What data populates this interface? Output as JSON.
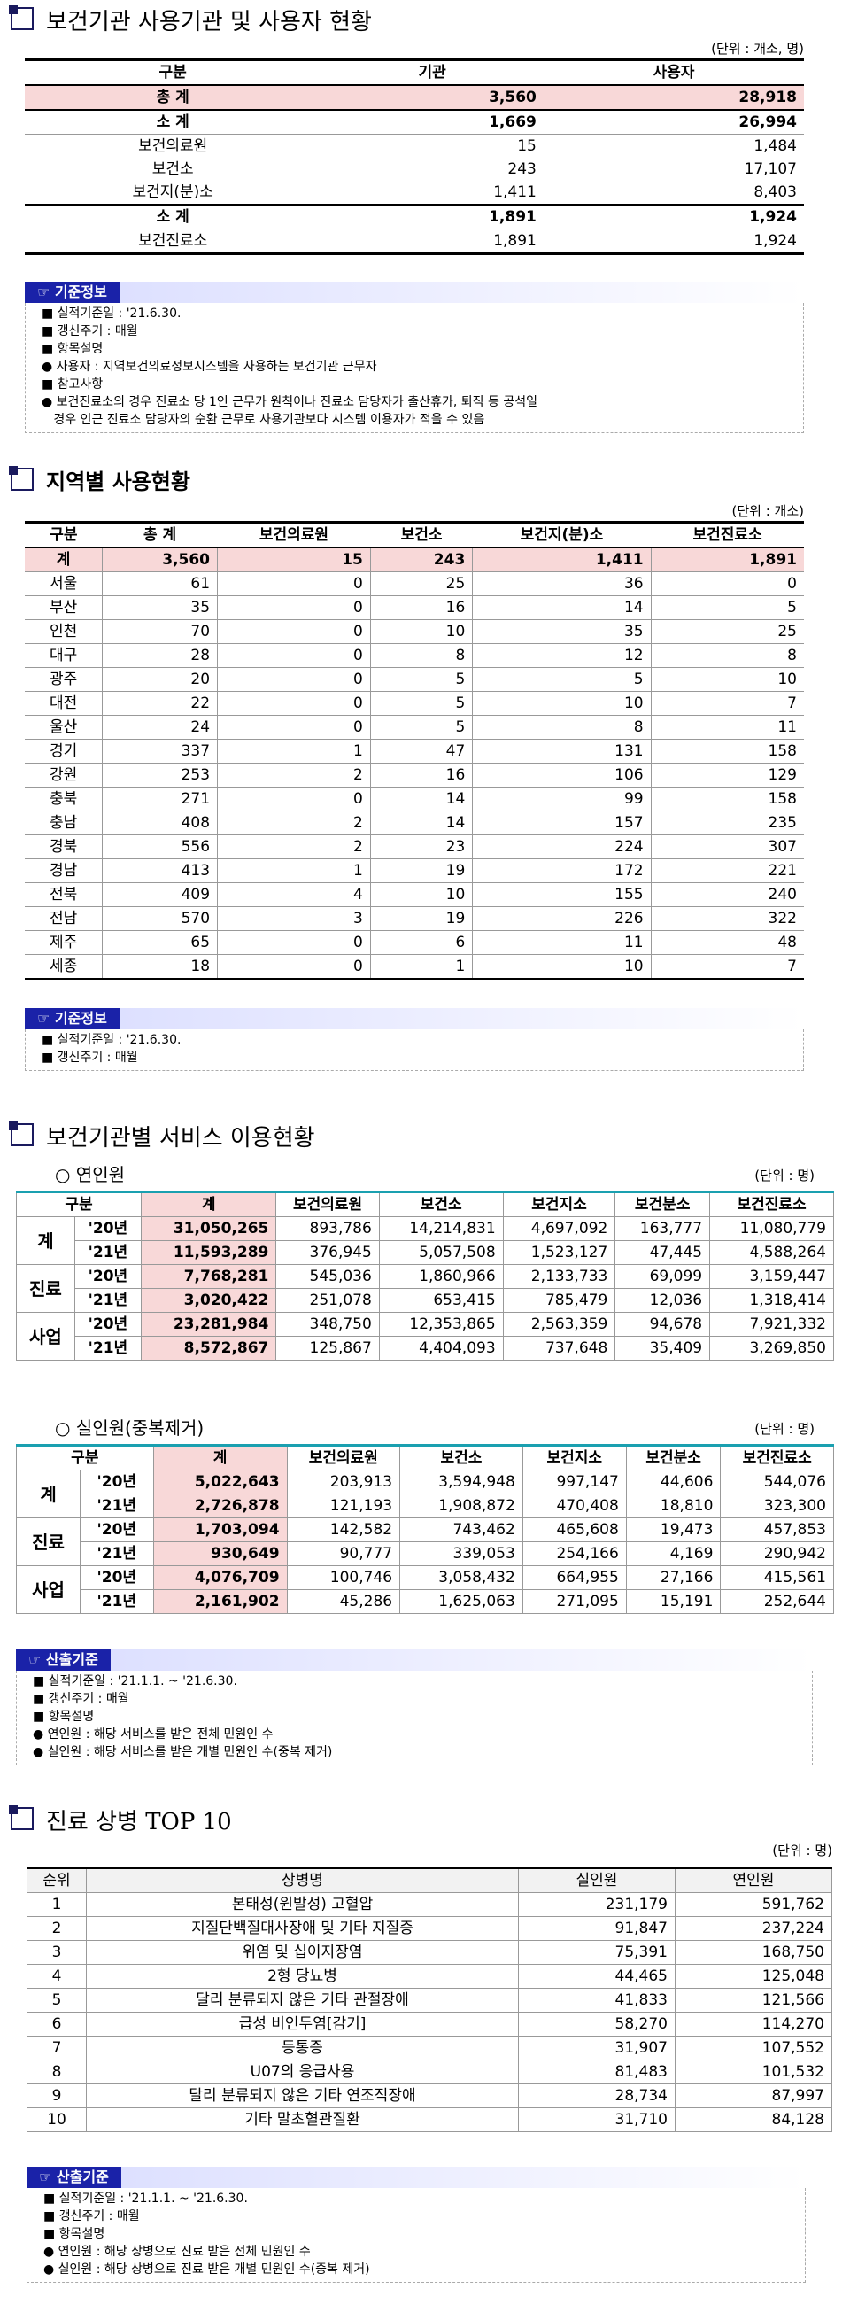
{
  "s1": {
    "title": "보건기관 사용기관 및 사용자 현황",
    "unit": "(단위 : 개소, 명)",
    "headers": [
      "구분",
      "기관",
      "사용자"
    ],
    "rows": [
      {
        "label": "총 계",
        "a": "3,560",
        "b": "28,918",
        "style": "total"
      },
      {
        "label": "소 계",
        "a": "1,669",
        "b": "26,994",
        "style": "sub"
      },
      {
        "label": "보건의료원",
        "a": "15",
        "b": "1,484",
        "style": ""
      },
      {
        "label": "보건소",
        "a": "243",
        "b": "17,107",
        "style": ""
      },
      {
        "label": "보건지(분)소",
        "a": "1,411",
        "b": "8,403",
        "style": ""
      },
      {
        "label": "소 계",
        "a": "1,891",
        "b": "1,924",
        "style": "sub"
      },
      {
        "label": "보건진료소",
        "a": "1,891",
        "b": "1,924",
        "style": ""
      }
    ],
    "note": {
      "tag": "☞ 기준정보",
      "lines": [
        "■ 실적기준일 : '21.6.30.",
        "■ 갱신주기 : 매월",
        "■ 항목설명",
        "● 사용자 : 지역보건의료정보시스템을 사용하는 보건기관 근무자",
        "■ 참고사항",
        "● 보건진료소의 경우 진료소 당 1인 근무가 원칙이나 진료소 담당자가 출산휴가, 퇴직 등 공석일",
        "   경우 인근 진료소 담당자의 순환 근무로 사용기관보다 시스템 이용자가 적을 수 있음"
      ]
    }
  },
  "s2": {
    "title": "지역별 사용현황",
    "unit": "(단위 : 개소)",
    "headers": [
      "구분",
      "총 계",
      "보건의료원",
      "보건소",
      "보건지(분)소",
      "보건진료소"
    ],
    "rows": [
      [
        "계",
        "3,560",
        "15",
        "243",
        "1,411",
        "1,891"
      ],
      [
        "서울",
        "61",
        "0",
        "25",
        "36",
        "0"
      ],
      [
        "부산",
        "35",
        "0",
        "16",
        "14",
        "5"
      ],
      [
        "인천",
        "70",
        "0",
        "10",
        "35",
        "25"
      ],
      [
        "대구",
        "28",
        "0",
        "8",
        "12",
        "8"
      ],
      [
        "광주",
        "20",
        "0",
        "5",
        "5",
        "10"
      ],
      [
        "대전",
        "22",
        "0",
        "5",
        "10",
        "7"
      ],
      [
        "울산",
        "24",
        "0",
        "5",
        "8",
        "11"
      ],
      [
        "경기",
        "337",
        "1",
        "47",
        "131",
        "158"
      ],
      [
        "강원",
        "253",
        "2",
        "16",
        "106",
        "129"
      ],
      [
        "충북",
        "271",
        "0",
        "14",
        "99",
        "158"
      ],
      [
        "충남",
        "408",
        "2",
        "14",
        "157",
        "235"
      ],
      [
        "경북",
        "556",
        "2",
        "23",
        "224",
        "307"
      ],
      [
        "경남",
        "413",
        "1",
        "19",
        "172",
        "221"
      ],
      [
        "전북",
        "409",
        "4",
        "10",
        "155",
        "240"
      ],
      [
        "전남",
        "570",
        "3",
        "19",
        "226",
        "322"
      ],
      [
        "제주",
        "65",
        "0",
        "6",
        "11",
        "48"
      ],
      [
        "세종",
        "18",
        "0",
        "1",
        "10",
        "7"
      ]
    ],
    "note": {
      "tag": "☞ 기준정보",
      "lines": [
        "■ 실적기준일 : '21.6.30.",
        "■ 갱신주기 : 매월"
      ]
    }
  },
  "s3": {
    "title": "보건기관별 서비스 이용현황",
    "sub1": "○ 연인원",
    "sub2": "○ 실인원(중복제거)",
    "unit": "(단위 : 명)",
    "headers": [
      "구분",
      "계",
      "보건의료원",
      "보건소",
      "보건지소",
      "보건분소",
      "보건진료소"
    ],
    "t1": [
      {
        "group": "계",
        "year": "'20년",
        "v": [
          "31,050,265",
          "893,786",
          "14,214,831",
          "4,697,092",
          "163,777",
          "11,080,779"
        ]
      },
      {
        "group": "",
        "year": "'21년",
        "v": [
          "11,593,289",
          "376,945",
          "5,057,508",
          "1,523,127",
          "47,445",
          "4,588,264"
        ]
      },
      {
        "group": "진료",
        "year": "'20년",
        "v": [
          "7,768,281",
          "545,036",
          "1,860,966",
          "2,133,733",
          "69,099",
          "3,159,447"
        ]
      },
      {
        "group": "",
        "year": "'21년",
        "v": [
          "3,020,422",
          "251,078",
          "653,415",
          "785,479",
          "12,036",
          "1,318,414"
        ]
      },
      {
        "group": "사업",
        "year": "'20년",
        "v": [
          "23,281,984",
          "348,750",
          "12,353,865",
          "2,563,359",
          "94,678",
          "7,921,332"
        ]
      },
      {
        "group": "",
        "year": "'21년",
        "v": [
          "8,572,867",
          "125,867",
          "4,404,093",
          "737,648",
          "35,409",
          "3,269,850"
        ]
      }
    ],
    "t2": [
      {
        "group": "계",
        "year": "'20년",
        "v": [
          "5,022,643",
          "203,913",
          "3,594,948",
          "997,147",
          "44,606",
          "544,076"
        ]
      },
      {
        "group": "",
        "year": "'21년",
        "v": [
          "2,726,878",
          "121,193",
          "1,908,872",
          "470,408",
          "18,810",
          "323,300"
        ]
      },
      {
        "group": "진료",
        "year": "'20년",
        "v": [
          "1,703,094",
          "142,582",
          "743,462",
          "465,608",
          "19,473",
          "457,853"
        ]
      },
      {
        "group": "",
        "year": "'21년",
        "v": [
          "930,649",
          "90,777",
          "339,053",
          "254,166",
          "4,169",
          "290,942"
        ]
      },
      {
        "group": "사업",
        "year": "'20년",
        "v": [
          "4,076,709",
          "100,746",
          "3,058,432",
          "664,955",
          "27,166",
          "415,561"
        ]
      },
      {
        "group": "",
        "year": "'21년",
        "v": [
          "2,161,902",
          "45,286",
          "1,625,063",
          "271,095",
          "15,191",
          "252,644"
        ]
      }
    ],
    "note": {
      "tag": "☞ 산출기준",
      "lines": [
        "■ 실적기준일 : '21.1.1. ~ '21.6.30.",
        "■ 갱신주기 : 매월",
        "■ 항목설명",
        "● 연인원 : 해당 서비스를 받은 전체 민원인 수",
        "● 실인원 : 해당 서비스를 받은 개별 민원인 수(중복 제거)"
      ]
    }
  },
  "s4": {
    "title": "진료 상병 TOP 10",
    "unit": "(단위 : 명)",
    "headers": [
      "순위",
      "상병명",
      "실인원",
      "연인원"
    ],
    "rows": [
      [
        "1",
        "본태성(원발성) 고혈압",
        "231,179",
        "591,762"
      ],
      [
        "2",
        "지질단백질대사장애 및 기타 지질증",
        "91,847",
        "237,224"
      ],
      [
        "3",
        "위염 및 십이지장염",
        "75,391",
        "168,750"
      ],
      [
        "4",
        "2형 당뇨병",
        "44,465",
        "125,048"
      ],
      [
        "5",
        "달리 분류되지 않은 기타 관절장애",
        "41,833",
        "121,566"
      ],
      [
        "6",
        "급성 비인두염[감기]",
        "58,270",
        "114,270"
      ],
      [
        "7",
        "등통증",
        "31,907",
        "107,552"
      ],
      [
        "8",
        "U07의 응급사용",
        "81,483",
        "101,532"
      ],
      [
        "9",
        "달리 분류되지 않은 기타 연조직장애",
        "28,734",
        "87,997"
      ],
      [
        "10",
        "기타 말초혈관질환",
        "31,710",
        "84,128"
      ]
    ],
    "note": {
      "tag": "☞ 산출기준",
      "lines": [
        "■ 실적기준일 : '21.1.1. ~ '21.6.30.",
        "■ 갱신주기 : 매월",
        "■ 항목설명",
        "● 연인원 : 해당 상병으로 진료 받은 전체 민원인 수",
        "● 실인원 : 해당 상병으로 진료 받은 개별 민원인 수(중복 제거)"
      ]
    }
  }
}
